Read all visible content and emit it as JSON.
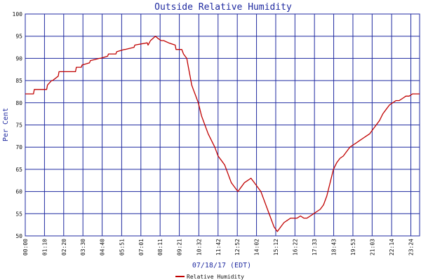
{
  "chart_data": {
    "type": "line",
    "title": "Outside Relative Humidity",
    "xlabel": "07/18/17 (EDT)",
    "ylabel": "Per Cent",
    "ylim": [
      50,
      100
    ],
    "y_ticks": [
      50,
      55,
      60,
      65,
      70,
      75,
      80,
      85,
      90,
      95,
      100
    ],
    "x_tick_labels": [
      "00:00",
      "01:10",
      "02:20",
      "03:30",
      "04:40",
      "05:51",
      "07:01",
      "08:11",
      "09:21",
      "10:32",
      "11:42",
      "12:52",
      "14:02",
      "15:12",
      "16:22",
      "17:33",
      "18:43",
      "19:53",
      "21:03",
      "22:14",
      "23:24"
    ],
    "x_tick_hours": [
      0,
      1.1667,
      2.3333,
      3.5,
      4.6667,
      5.85,
      7.0167,
      8.1833,
      9.35,
      10.5333,
      11.7,
      12.8667,
      14.0333,
      15.2,
      16.3667,
      17.55,
      18.7167,
      19.8833,
      21.05,
      22.2333,
      23.4
    ],
    "xlim": [
      0,
      23.93
    ],
    "grid": true,
    "legend_position": "bottom",
    "series_color": "#c00000",
    "grid_color": "#1f2aa0",
    "series": [
      {
        "name": "Relative Humidity",
        "x": [
          0,
          0.5,
          0.55,
          1.3,
          1.35,
          1.6,
          1.65,
          2.0,
          2.05,
          3.05,
          3.1,
          3.4,
          3.45,
          3.9,
          3.95,
          4.5,
          4.55,
          5.0,
          5.05,
          5.5,
          5.55,
          6.0,
          6.05,
          6.6,
          6.65,
          7.4,
          7.45,
          7.6,
          7.75,
          7.9,
          8.05,
          8.25,
          8.4,
          8.7,
          9.1,
          9.15,
          9.5,
          9.6,
          9.8,
          9.9,
          10.0,
          10.1,
          10.2,
          10.3,
          10.5,
          10.7,
          10.9,
          11.1,
          11.3,
          11.5,
          11.7,
          11.9,
          12.1,
          12.3,
          12.5,
          12.7,
          12.9,
          13.1,
          13.3,
          13.5,
          13.7,
          13.9,
          14.1,
          14.3,
          14.5,
          14.7,
          14.9,
          15.1,
          15.3,
          15.5,
          15.7,
          15.9,
          16.1,
          16.3,
          16.5,
          16.7,
          16.9,
          17.1,
          17.3,
          17.5,
          17.7,
          17.9,
          18.1,
          18.3,
          18.5,
          18.7,
          18.9,
          19.1,
          19.3,
          19.5,
          19.7,
          19.9,
          20.1,
          20.3,
          20.5,
          20.7,
          20.9,
          21.1,
          21.3,
          21.5,
          21.7,
          21.9,
          22.1,
          22.3,
          22.5,
          22.7,
          22.9,
          23.1,
          23.3,
          23.5,
          23.7,
          23.93
        ],
        "values": [
          82,
          82,
          83,
          83,
          84,
          85,
          85,
          86,
          87,
          87,
          88,
          88,
          88.5,
          89,
          89.5,
          90,
          90,
          90.5,
          91,
          91,
          91.5,
          92,
          92,
          92.5,
          93,
          93.5,
          93,
          94,
          94.5,
          95,
          94.5,
          94,
          94,
          93.5,
          93,
          92,
          92,
          91,
          90,
          88,
          86,
          84,
          83,
          82,
          80,
          77,
          75,
          73,
          71.5,
          70,
          68,
          67,
          66,
          64,
          62,
          61,
          60,
          61,
          62,
          62.5,
          63,
          62,
          61,
          60,
          58,
          56,
          54,
          52,
          51,
          52,
          53,
          53.5,
          54,
          54,
          54,
          54.5,
          54,
          54,
          54.5,
          55,
          55.5,
          56,
          57,
          59,
          62,
          65,
          66.5,
          67.5,
          68,
          69,
          70,
          70.5,
          71,
          71.5,
          72,
          72.5,
          73,
          74,
          75,
          76,
          77.5,
          78.5,
          79.5,
          80,
          80.5,
          80.5,
          81,
          81.5,
          81.5,
          82,
          82,
          82
        ]
      }
    ]
  }
}
